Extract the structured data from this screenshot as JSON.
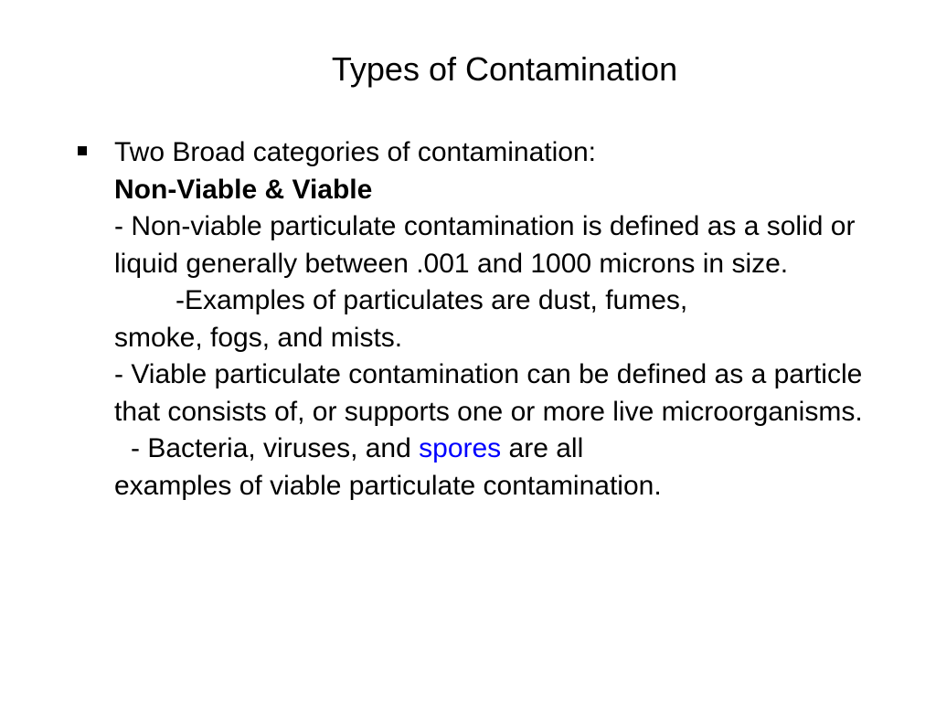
{
  "title": "Types of Contamination",
  "intro": "Two Broad categories of contamination:",
  "categories": "Non-Viable & Viable",
  "nonviable_def": "- Non-viable particulate contamination is defined as a solid or liquid generally between .001 and 1000 microns in size.",
  "examples_prefix": "-Examples of particulates are dust, fumes,",
  "examples_suffix": "smoke, fogs, and mists.",
  "viable_def": "- Viable particulate contamination can be defined as a particle that consists of, or supports one or more live microorganisms.",
  "viable_examples_prefix": "- Bacteria, viruses, and ",
  "spores": "spores",
  "viable_examples_mid": " are all",
  "viable_examples_end": "examples of viable particulate contamination.",
  "colors": {
    "background": "#ffffff",
    "text": "#000000",
    "link": "#0000ff"
  },
  "fonts": {
    "title_size": 36,
    "body_size": 30
  }
}
